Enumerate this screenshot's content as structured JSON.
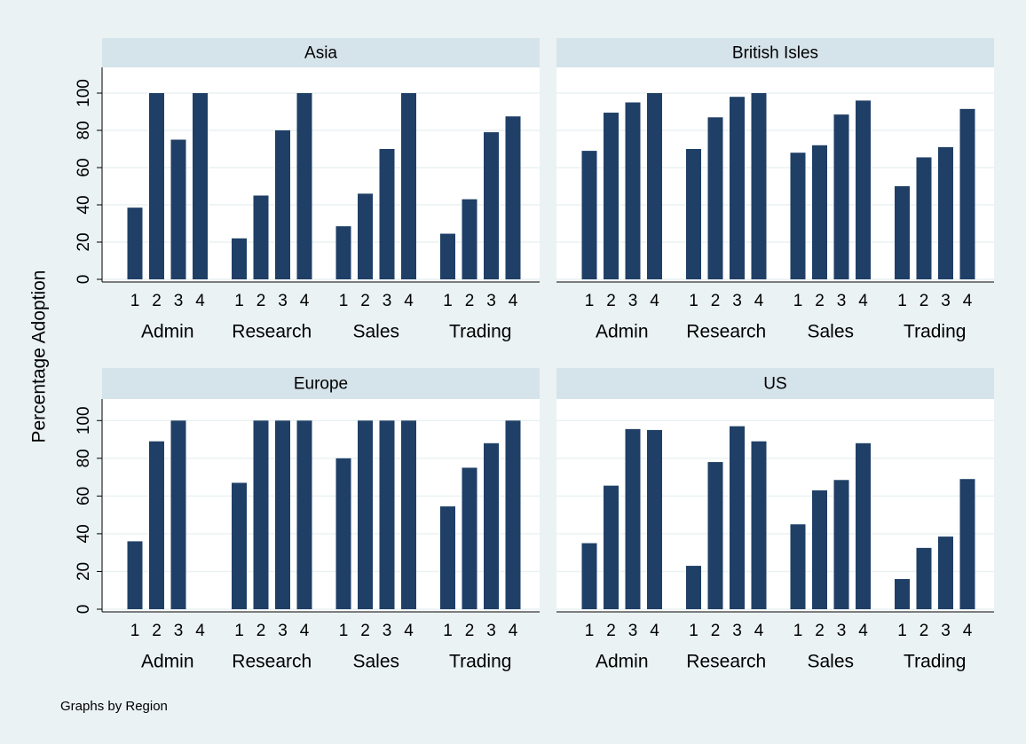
{
  "y_label": "Percentage Adoption",
  "note": "Graphs by Region",
  "chart_data": [
    {
      "type": "bar",
      "title": "Asia",
      "color": "#1f3f66",
      "ylim": [
        0,
        110
      ],
      "yticks": [
        0,
        20,
        40,
        60,
        80,
        100
      ],
      "grid": true,
      "groups": [
        {
          "name": "Admin",
          "categories": [
            "1",
            "2",
            "3",
            "4"
          ],
          "values": [
            38.5,
            100,
            75,
            100
          ]
        },
        {
          "name": "Research",
          "categories": [
            "1",
            "2",
            "3",
            "4"
          ],
          "values": [
            22,
            45,
            80,
            100
          ]
        },
        {
          "name": "Sales",
          "categories": [
            "1",
            "2",
            "3",
            "4"
          ],
          "values": [
            28.5,
            46,
            70,
            100
          ]
        },
        {
          "name": "Trading",
          "categories": [
            "1",
            "2",
            "3",
            "4"
          ],
          "values": [
            24.5,
            43,
            79,
            87.5
          ]
        }
      ]
    },
    {
      "type": "bar",
      "title": "British Isles",
      "color": "#1f3f66",
      "ylim": [
        0,
        110
      ],
      "yticks": [
        0,
        20,
        40,
        60,
        80,
        100
      ],
      "grid": true,
      "groups": [
        {
          "name": "Admin",
          "categories": [
            "1",
            "2",
            "3",
            "4"
          ],
          "values": [
            69,
            89.5,
            95,
            100
          ]
        },
        {
          "name": "Research",
          "categories": [
            "1",
            "2",
            "3",
            "4"
          ],
          "values": [
            70,
            87,
            98,
            100
          ]
        },
        {
          "name": "Sales",
          "categories": [
            "1",
            "2",
            "3",
            "4"
          ],
          "values": [
            68,
            72,
            88.5,
            96
          ]
        },
        {
          "name": "Trading",
          "categories": [
            "1",
            "2",
            "3",
            "4"
          ],
          "values": [
            50,
            65.5,
            71,
            91.5
          ]
        }
      ]
    },
    {
      "type": "bar",
      "title": "Europe",
      "color": "#1f3f66",
      "ylim": [
        0,
        110
      ],
      "yticks": [
        0,
        20,
        40,
        60,
        80,
        100
      ],
      "grid": true,
      "groups": [
        {
          "name": "Admin",
          "categories": [
            "1",
            "2",
            "3",
            "4"
          ],
          "values": [
            36,
            89,
            100,
            null
          ]
        },
        {
          "name": "Research",
          "categories": [
            "1",
            "2",
            "3",
            "4"
          ],
          "values": [
            67,
            100,
            100,
            100
          ]
        },
        {
          "name": "Sales",
          "categories": [
            "1",
            "2",
            "3",
            "4"
          ],
          "values": [
            80,
            100,
            100,
            100
          ]
        },
        {
          "name": "Trading",
          "categories": [
            "1",
            "2",
            "3",
            "4"
          ],
          "values": [
            54.5,
            75,
            88,
            100
          ]
        }
      ]
    },
    {
      "type": "bar",
      "title": "US",
      "color": "#1f3f66",
      "ylim": [
        0,
        110
      ],
      "yticks": [
        0,
        20,
        40,
        60,
        80,
        100
      ],
      "grid": true,
      "groups": [
        {
          "name": "Admin",
          "categories": [
            "1",
            "2",
            "3",
            "4"
          ],
          "values": [
            35,
            65.5,
            95.5,
            95
          ]
        },
        {
          "name": "Research",
          "categories": [
            "1",
            "2",
            "3",
            "4"
          ],
          "values": [
            23,
            78,
            97,
            89
          ]
        },
        {
          "name": "Sales",
          "categories": [
            "1",
            "2",
            "3",
            "4"
          ],
          "values": [
            45,
            63,
            68.5,
            88
          ]
        },
        {
          "name": "Trading",
          "categories": [
            "1",
            "2",
            "3",
            "4"
          ],
          "values": [
            16,
            32.5,
            38.5,
            69
          ]
        }
      ]
    }
  ]
}
